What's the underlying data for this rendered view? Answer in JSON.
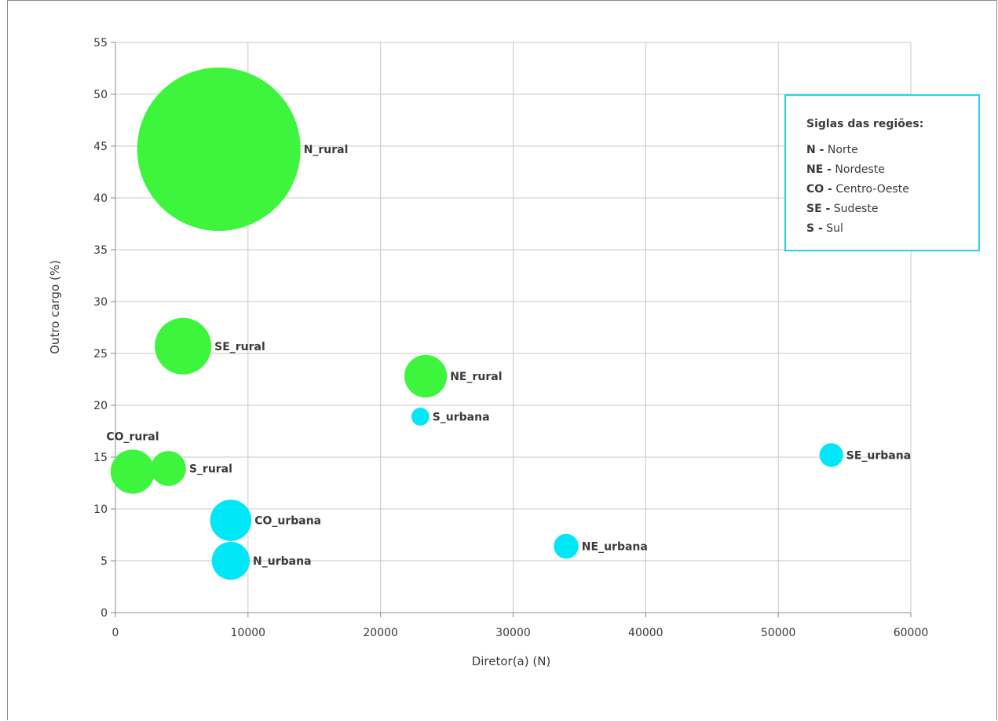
{
  "chart_data": {
    "type": "bubble",
    "xlabel": "Diretor(a) (N)",
    "ylabel": "Outro cargo (%)",
    "xlim": [
      0,
      60000
    ],
    "ylim": [
      0,
      55
    ],
    "x_ticks": [
      "0",
      "10000",
      "20000",
      "30000",
      "40000",
      "50000",
      "60000"
    ],
    "y_ticks": [
      "0",
      "5",
      "10",
      "15",
      "20",
      "25",
      "30",
      "35",
      "40",
      "45",
      "50",
      "55"
    ],
    "grid": true,
    "colors": {
      "rural": "#3df53d",
      "urbana": "#00e8f8"
    },
    "points": [
      {
        "label": "N_rural",
        "group": "rural",
        "x": 7800,
        "y": 44.7,
        "size": 100
      },
      {
        "label": "SE_rural",
        "group": "rural",
        "x": 5100,
        "y": 25.7,
        "size": 12
      },
      {
        "label": "NE_rural",
        "group": "rural",
        "x": 23400,
        "y": 22.8,
        "size": 6.8
      },
      {
        "label": "CO_rural",
        "group": "rural",
        "x": 1300,
        "y": 13.6,
        "size": 7.3
      },
      {
        "label": "S_rural",
        "group": "rural",
        "x": 4000,
        "y": 13.9,
        "size": 4.6
      },
      {
        "label": "S_urbana",
        "group": "urbana",
        "x": 23000,
        "y": 18.9,
        "size": 1.2
      },
      {
        "label": "SE_urbana",
        "group": "urbana",
        "x": 54000,
        "y": 15.2,
        "size": 2.1
      },
      {
        "label": "CO_urbana",
        "group": "urbana",
        "x": 8700,
        "y": 8.9,
        "size": 6.4
      },
      {
        "label": "N_urbana",
        "group": "urbana",
        "x": 8700,
        "y": 5.0,
        "size": 5.4
      },
      {
        "label": "NE_urbana",
        "group": "urbana",
        "x": 34000,
        "y": 6.4,
        "size": 2.3
      }
    ],
    "legend": {
      "title": "Siglas das regiões:",
      "placement": "top-right",
      "border_color": "#22d3ea",
      "items": [
        {
          "abbr": "N -",
          "name": "Norte"
        },
        {
          "abbr": "NE -",
          "name": "Nordeste"
        },
        {
          "abbr": "CO -",
          "name": "Centro-Oeste"
        },
        {
          "abbr": "SE -",
          "name": "Sudeste"
        },
        {
          "abbr": "S -",
          "name": "Sul"
        }
      ]
    }
  }
}
